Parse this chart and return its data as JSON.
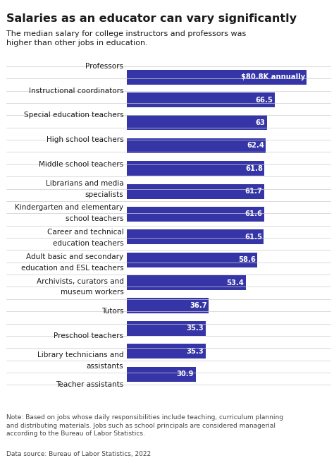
{
  "title": "Salaries as an educator can vary significantly",
  "subtitle": "The median salary for college instructors and professors was\nhigher than other jobs in education.",
  "categories": [
    "Professors",
    "Instructional coordinators",
    "Special education teachers",
    "High school teachers",
    "Middle school teachers",
    "Librarians and media\nspecialists",
    "Kindergarten and elementary\nschool teachers",
    "Career and technical\neducation teachers",
    "Adult basic and secondary\neducation and ESL teachers",
    "Archivists, curators and\nmuseum workers",
    "Tutors",
    "Preschool teachers",
    "Library technicians and\nassistants",
    "Teacher assistants"
  ],
  "values": [
    80.8,
    66.5,
    63.0,
    62.4,
    61.8,
    61.7,
    61.6,
    61.5,
    58.6,
    53.4,
    36.7,
    35.3,
    35.3,
    30.9
  ],
  "bar_labels": [
    "$80.8K annually",
    "66.5",
    "63",
    "62.4",
    "61.8",
    "61.7",
    "61.6",
    "61.5",
    "58.6",
    "53.4",
    "36.7",
    "35.3",
    "35.3",
    "30.9"
  ],
  "bar_color": "#3535a8",
  "text_color": "#1a1a1a",
  "label_color": "#ffffff",
  "background_color": "#ffffff",
  "note": "Note: Based on jobs whose daily responsibilities include teaching, curriculum planning\nand distributing materials. Jobs such as school principals are considered managerial\naccording to the Bureau of Labor Statistics.",
  "source": "Data source: Bureau of Labor Statistics, 2022",
  "xlim": [
    0,
    90
  ]
}
